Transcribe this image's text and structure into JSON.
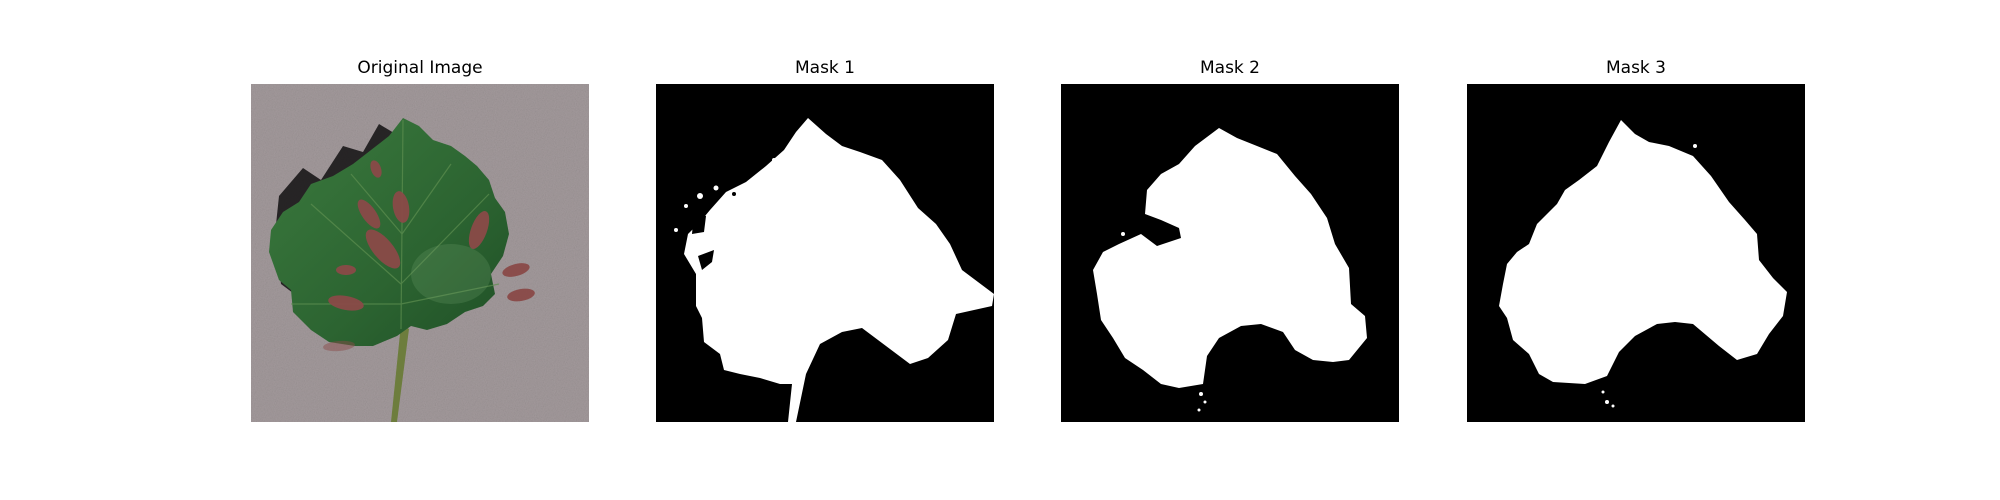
{
  "figure": {
    "panels": [
      {
        "title": "Original Image"
      },
      {
        "title": "Mask 1"
      },
      {
        "title": "Mask 2"
      },
      {
        "title": "Mask 3"
      }
    ]
  },
  "colors": {
    "background": "#ffffff",
    "mask_background": "#000000",
    "mask_foreground": "#ffffff",
    "leaf_green": "#2f6b34",
    "lesion_red": "#8a4a48",
    "backdrop_gray": "#9e9698"
  }
}
